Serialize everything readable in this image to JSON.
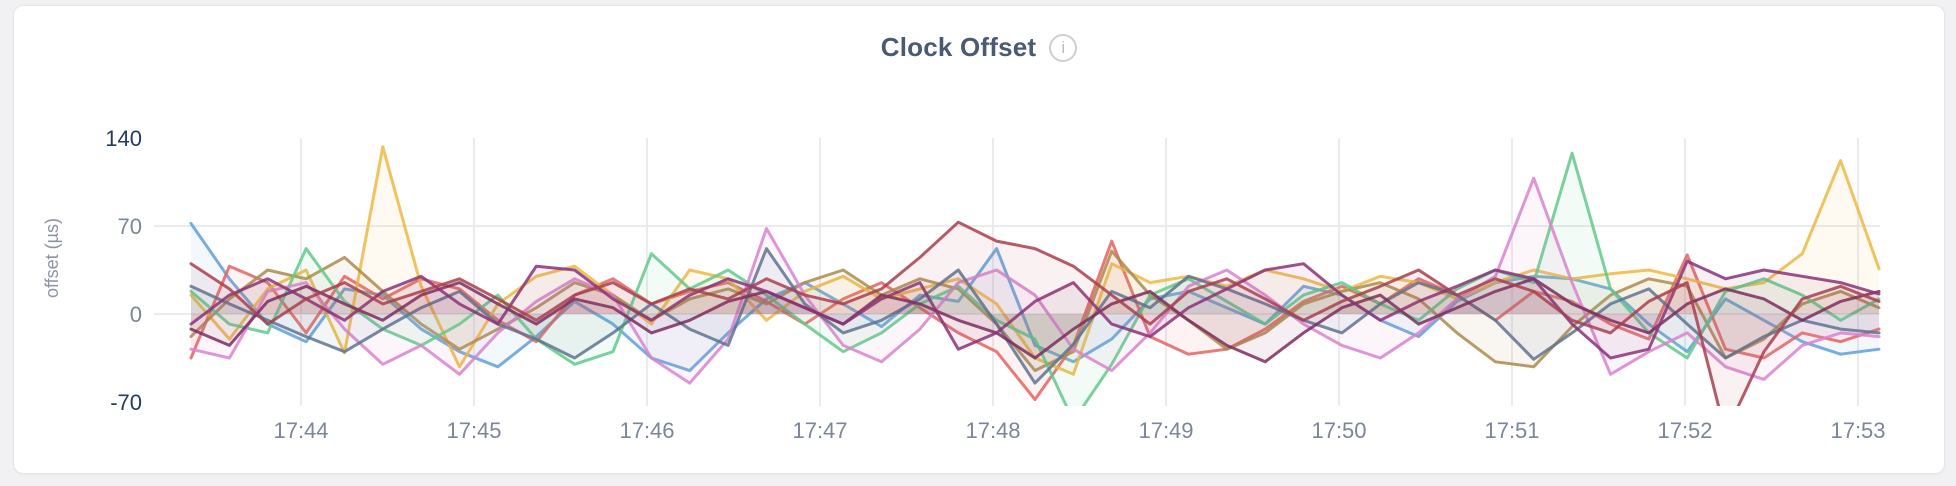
{
  "page": {
    "background": "#f1f1f3"
  },
  "card": {
    "background": "#ffffff",
    "border_color": "#e5e5e8"
  },
  "header": {
    "title": "Clock Offset",
    "info_icon": "i"
  },
  "chart_data": {
    "type": "line",
    "title": "Clock Offset",
    "xlabel": "",
    "ylabel": "offset (µs)",
    "unit": "µs",
    "ylim": [
      -70,
      140
    ],
    "y_ticks": [
      140,
      70,
      0,
      -70
    ],
    "y_gridline_values": [
      70,
      0
    ],
    "x_ticks": [
      "17:44",
      "17:45",
      "17:46",
      "17:47",
      "17:48",
      "17:49",
      "17:50",
      "17:51",
      "17:52",
      "17:53"
    ],
    "grid": true,
    "legend_position": "none",
    "style": {
      "grid_color": "#ebebed",
      "tick_label_color": "#7b8698",
      "tick_label_color_extremes": "#223c5e",
      "axis_title_color": "#8b93a4",
      "line_width": 3,
      "line_opacity": 0.85,
      "area_fill_opacity": 0.075
    },
    "series": [
      {
        "name": "series-blue",
        "color": "#5FA0D9",
        "values": [
          72,
          28,
          -8,
          -22,
          20,
          15,
          -12,
          -30,
          -42,
          -18,
          10,
          -8,
          -35,
          -45,
          -15,
          12,
          25,
          8,
          -10,
          15,
          10,
          52,
          -25,
          -38,
          -20,
          12,
          18,
          5,
          -8,
          22,
          15,
          -5,
          -18,
          10,
          25,
          30,
          28,
          20,
          -8,
          -30,
          12,
          -5,
          -22,
          -32,
          -28
        ]
      },
      {
        "name": "series-salmon",
        "color": "#E4635F",
        "values": [
          -35,
          38,
          25,
          -15,
          30,
          12,
          28,
          20,
          -5,
          -22,
          15,
          28,
          8,
          18,
          25,
          10,
          -8,
          12,
          25,
          5,
          -15,
          -30,
          -68,
          -25,
          58,
          -18,
          -32,
          -28,
          -12,
          10,
          22,
          8,
          28,
          15,
          -5,
          18,
          10,
          -8,
          -20,
          47,
          -28,
          -35,
          -15,
          -22,
          -12
        ]
      },
      {
        "name": "series-gold",
        "color": "#EDB844",
        "values": [
          15,
          -20,
          20,
          35,
          -31,
          133,
          22,
          -42,
          8,
          30,
          38,
          15,
          -8,
          35,
          28,
          -5,
          18,
          30,
          12,
          20,
          28,
          8,
          -35,
          -48,
          40,
          25,
          30,
          22,
          35,
          28,
          18,
          30,
          25,
          12,
          25,
          35,
          28,
          32,
          35,
          28,
          20,
          25,
          48,
          122,
          36
        ]
      },
      {
        "name": "series-khaki",
        "color": "#AB8B4D",
        "values": [
          -18,
          12,
          35,
          28,
          45,
          18,
          -8,
          -28,
          -12,
          5,
          25,
          15,
          -5,
          12,
          20,
          8,
          25,
          35,
          15,
          28,
          20,
          -8,
          -45,
          -30,
          50,
          15,
          -5,
          -28,
          -15,
          8,
          18,
          25,
          12,
          -15,
          -38,
          -42,
          -10,
          15,
          28,
          22,
          -35,
          -20,
          8,
          18,
          5
        ]
      },
      {
        "name": "series-emerald",
        "color": "#61C98B",
        "values": [
          18,
          -8,
          -15,
          52,
          10,
          -12,
          -25,
          -8,
          15,
          -20,
          -40,
          -30,
          48,
          20,
          35,
          15,
          -8,
          -30,
          -15,
          8,
          22,
          -5,
          -20,
          -85,
          -40,
          15,
          28,
          10,
          -8,
          15,
          25,
          8,
          -5,
          20,
          35,
          25,
          128,
          20,
          -15,
          -35,
          18,
          28,
          15,
          -5,
          12
        ]
      },
      {
        "name": "series-orchid",
        "color": "#D983CF",
        "values": [
          -28,
          -35,
          18,
          25,
          -12,
          -40,
          -25,
          -48,
          -15,
          10,
          28,
          15,
          -35,
          -55,
          -20,
          68,
          15,
          -25,
          -38,
          -12,
          25,
          35,
          15,
          -28,
          -45,
          -15,
          22,
          35,
          15,
          -8,
          -25,
          -35,
          -15,
          12,
          30,
          108,
          25,
          -48,
          -30,
          -15,
          -42,
          -52,
          -25,
          -15,
          -18
        ]
      },
      {
        "name": "series-slate",
        "color": "#5F7390",
        "values": [
          22,
          8,
          -5,
          -18,
          -30,
          -12,
          5,
          18,
          -8,
          -20,
          -35,
          -15,
          8,
          -12,
          -25,
          52,
          8,
          -15,
          -5,
          12,
          35,
          -8,
          -55,
          -24,
          18,
          5,
          30,
          20,
          8,
          -5,
          -15,
          8,
          25,
          15,
          -5,
          -36,
          -15,
          8,
          20,
          -8,
          -35,
          -18,
          -5,
          -12,
          -15
        ]
      },
      {
        "name": "series-wine",
        "color": "#7B2D5E",
        "values": [
          -12,
          -25,
          10,
          22,
          8,
          -5,
          15,
          25,
          8,
          -8,
          12,
          5,
          -15,
          -5,
          10,
          18,
          5,
          -8,
          15,
          8,
          -5,
          -15,
          -35,
          -12,
          8,
          18,
          -5,
          -25,
          -38,
          -15,
          5,
          15,
          -8,
          5,
          18,
          28,
          8,
          -5,
          -15,
          8,
          20,
          12,
          -5,
          10,
          18
        ]
      },
      {
        "name": "series-plum",
        "color": "#8A3377",
        "values": [
          -8,
          15,
          28,
          12,
          -5,
          18,
          30,
          8,
          -8,
          38,
          35,
          12,
          -5,
          15,
          28,
          18,
          5,
          -8,
          12,
          25,
          -28,
          -15,
          10,
          25,
          -8,
          -18,
          5,
          20,
          35,
          40,
          15,
          -5,
          10,
          22,
          35,
          28,
          -8,
          -35,
          -28,
          42,
          28,
          35,
          30,
          25,
          16
        ]
      },
      {
        "name": "series-burgundy",
        "color": "#A8404F",
        "values": [
          40,
          20,
          -8,
          12,
          25,
          8,
          18,
          28,
          12,
          -5,
          15,
          25,
          8,
          20,
          12,
          28,
          15,
          8,
          20,
          45,
          73,
          58,
          52,
          38,
          15,
          -8,
          18,
          28,
          12,
          -5,
          10,
          22,
          35,
          15,
          28,
          18,
          -5,
          -15,
          10,
          25,
          -95,
          -30,
          12,
          22,
          10
        ]
      }
    ]
  }
}
